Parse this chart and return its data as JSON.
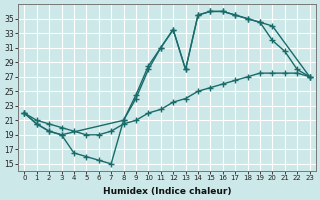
{
  "line_upper_x": [
    0,
    1,
    2,
    3,
    8,
    9,
    10,
    11,
    12,
    13,
    14,
    15,
    16,
    17,
    18,
    19,
    20,
    23
  ],
  "line_upper_y": [
    22,
    20.5,
    19.5,
    19,
    21,
    24,
    28,
    31,
    33.5,
    28,
    35.5,
    36,
    36,
    35.5,
    35,
    34.5,
    34,
    27
  ],
  "line_mid_x": [
    0,
    1,
    2,
    3,
    4,
    5,
    6,
    7,
    8,
    9,
    10,
    11,
    12,
    13,
    14,
    15,
    16,
    17,
    18,
    19,
    20,
    21,
    22,
    23
  ],
  "line_mid_y": [
    22,
    21,
    20.5,
    20,
    19.5,
    19,
    19,
    19.5,
    20.5,
    21,
    22,
    22.5,
    23.5,
    24,
    25,
    25.5,
    26,
    26.5,
    27,
    27.5,
    27.5,
    27.5,
    27.5,
    27
  ],
  "line_dip_x": [
    0,
    1,
    2,
    3,
    4,
    5,
    6,
    7,
    8,
    9,
    10,
    11,
    12,
    13,
    14,
    15,
    16,
    17,
    18,
    19,
    20,
    21,
    22,
    23
  ],
  "line_dip_y": [
    22,
    20.5,
    19.5,
    19,
    16.5,
    16,
    15.5,
    15,
    21,
    24.5,
    28.5,
    31,
    33.5,
    28,
    35.5,
    36,
    36,
    35.5,
    35,
    34.5,
    32,
    30.5,
    28,
    27
  ],
  "bg_color": "#cde8e8",
  "line_color": "#1a6b6b",
  "grid_color": "#b8d8d8",
  "xlabel": "Humidex (Indice chaleur)",
  "ylim": [
    14,
    37
  ],
  "xlim": [
    -0.5,
    23.5
  ],
  "yticks": [
    15,
    17,
    19,
    21,
    23,
    25,
    27,
    29,
    31,
    33,
    35
  ],
  "xticks": [
    0,
    1,
    2,
    3,
    4,
    5,
    6,
    7,
    8,
    9,
    10,
    11,
    12,
    13,
    14,
    15,
    16,
    17,
    18,
    19,
    20,
    21,
    22,
    23
  ],
  "marker": "+",
  "markersize": 4,
  "linewidth": 1.0
}
